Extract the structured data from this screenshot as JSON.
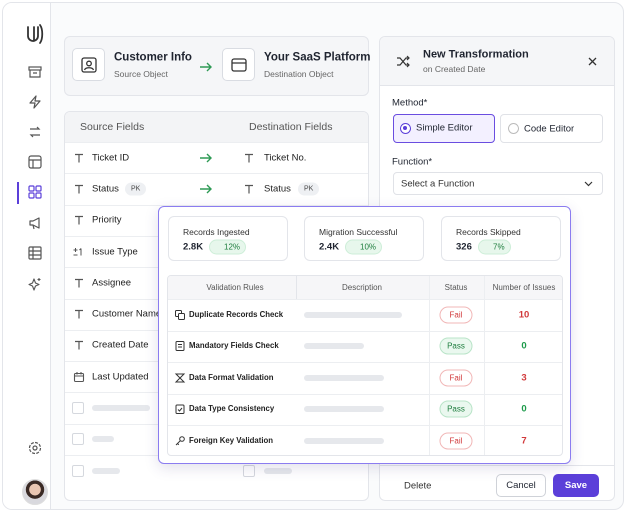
{
  "mapping_header": {
    "source": {
      "title": "Customer Info",
      "subtitle": "Source Object"
    },
    "destination": {
      "title": "Your SaaS Platform",
      "subtitle": "Destination Object"
    }
  },
  "fields_table": {
    "headers": [
      "Source Fields",
      "Destination Fields"
    ],
    "rows": [
      {
        "source": "Ticket ID",
        "destination": "Ticket No."
      },
      {
        "source": "Status",
        "source_badge": "PK",
        "destination": "Status",
        "destination_badge": "PK"
      },
      {
        "source": "Priority"
      },
      {
        "source": "Issue Type"
      },
      {
        "source": "Assignee"
      },
      {
        "source": "Customer Name"
      },
      {
        "source": "Created Date"
      },
      {
        "source": "Last Updated"
      }
    ]
  },
  "transformation_panel": {
    "title": "New Transformation",
    "subtitle": "on Created Date",
    "method_label": "Method*",
    "methods": [
      "Simple Editor",
      "Code Editor"
    ],
    "function_label": "Function*",
    "function_placeholder": "Select a Function",
    "buttons": {
      "delete": "Delete",
      "cancel": "Cancel",
      "save": "Save"
    }
  },
  "validation_modal": {
    "stats": [
      {
        "label": "Records Ingested",
        "value": "2.8K",
        "change": "12%"
      },
      {
        "label": "Migration Successful",
        "value": "2.4K",
        "change": "10%"
      },
      {
        "label": "Records Skipped",
        "value": "326",
        "change": "7%"
      }
    ],
    "table": {
      "headers": [
        "Validation Rules",
        "Description",
        "Status",
        "Number of Issues"
      ],
      "rows": [
        {
          "rule": "Duplicate Records Check",
          "status": "Fail",
          "issues": 10
        },
        {
          "rule": "Mandatory Fields Check",
          "status": "Pass",
          "issues": 0
        },
        {
          "rule": "Data Format Validation",
          "status": "Fail",
          "issues": 3
        },
        {
          "rule": "Data Type Consistency",
          "status": "Pass",
          "issues": 0
        },
        {
          "rule": "Foreign Key Validation",
          "status": "Fail",
          "issues": 7
        }
      ]
    }
  }
}
